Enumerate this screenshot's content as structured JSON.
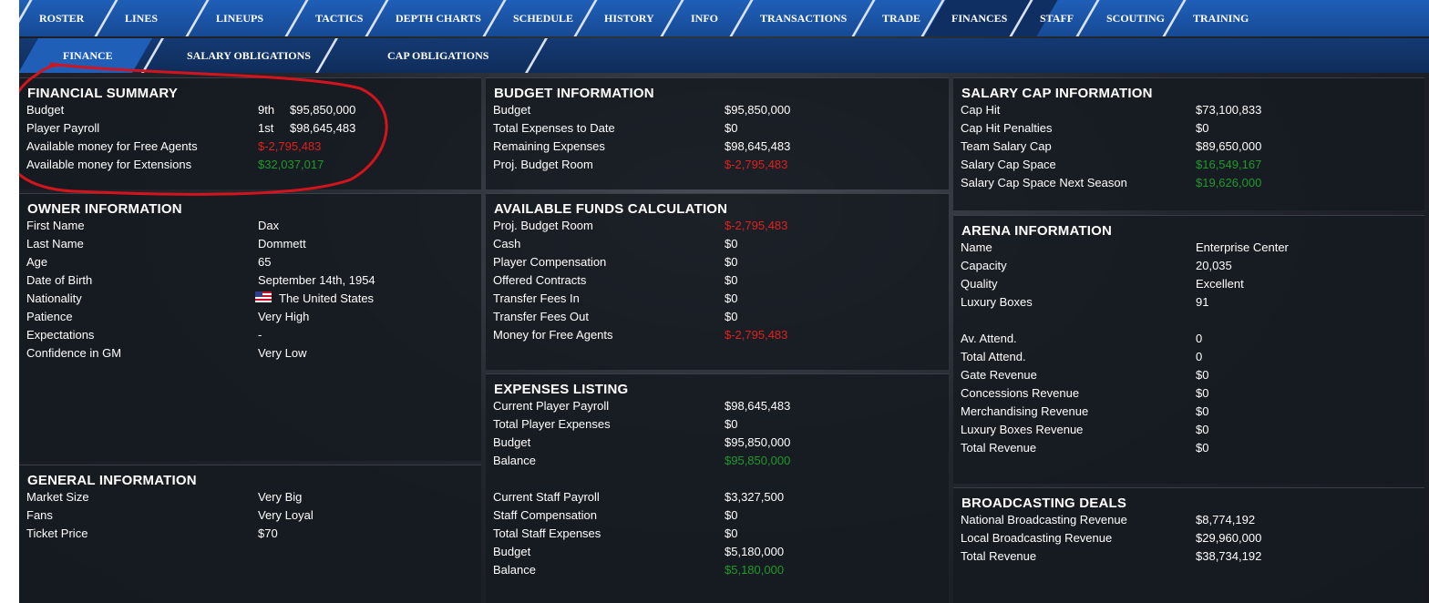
{
  "tabs": [
    "ROSTER",
    "LINES",
    "LINEUPS",
    "TACTICS",
    "DEPTH CHARTS",
    "SCHEDULE",
    "HISTORY",
    "INFO",
    "TRANSACTIONS",
    "TRADE",
    "FINANCES",
    "STAFF",
    "SCOUTING",
    "TRAINING"
  ],
  "active_tab": 10,
  "subtabs": [
    "FINANCE",
    "SALARY OBLIGATIONS",
    "CAP OBLIGATIONS"
  ],
  "active_subtab": 0,
  "panels": [
    {
      "title": "FINANCIAL SUMMARY",
      "groups": [
        [
          {
            "label": "Budget",
            "rank": "9th",
            "value": "$95,850,000"
          },
          {
            "label": "Player Payroll",
            "rank": "1st",
            "value": "$98,645,483"
          },
          {
            "label": "Available money for Free Agents",
            "value": "$-2,795,483",
            "color": "#e0201c"
          },
          {
            "label": "Available money for Extensions",
            "value": "$32,037,017",
            "color": "#1f9a2a"
          }
        ]
      ]
    },
    {
      "title": "OWNER INFORMATION",
      "groups": [
        [
          {
            "label": "First Name",
            "value": "Dax"
          },
          {
            "label": "Last Name",
            "value": "Dommett"
          },
          {
            "label": "Age",
            "value": "65"
          },
          {
            "label": "Date of Birth",
            "value": "September 14th, 1954"
          },
          {
            "label": "Nationality",
            "value": "The United States"
          },
          {
            "label": "Patience",
            "value": "Very High"
          },
          {
            "label": "Expectations",
            "value": "-"
          },
          {
            "label": "Confidence in GM",
            "value": "Very Low"
          }
        ]
      ]
    },
    {
      "title": "GENERAL INFORMATION",
      "groups": [
        [
          {
            "label": "Market Size",
            "value": "Very Big"
          },
          {
            "label": "Fans",
            "value": "Very Loyal"
          },
          {
            "label": "Ticket Price",
            "value": "$70"
          }
        ]
      ]
    },
    {
      "title": "BUDGET INFORMATION",
      "groups": [
        [
          {
            "label": "Budget",
            "value": "$95,850,000"
          },
          {
            "label": "Total Expenses to Date",
            "value": "$0"
          },
          {
            "label": "Remaining Expenses",
            "value": "$98,645,483"
          },
          {
            "label": "Proj. Budget Room",
            "value": "$-2,795,483",
            "color": "#e0201c"
          }
        ]
      ]
    },
    {
      "title": "AVAILABLE FUNDS CALCULATION",
      "groups": [
        [
          {
            "label": "Proj. Budget Room",
            "value": "$-2,795,483",
            "color": "#e0201c"
          },
          {
            "label": "Cash",
            "value": "$0"
          },
          {
            "label": "Player Compensation",
            "value": "$0"
          },
          {
            "label": "Offered Contracts",
            "value": "$0"
          },
          {
            "label": "Transfer Fees In",
            "value": "$0"
          },
          {
            "label": "Transfer Fees Out",
            "value": "$0"
          },
          {
            "label": "Money for Free Agents",
            "value": "$-2,795,483",
            "color": "#e0201c"
          }
        ]
      ]
    },
    {
      "title": "EXPENSES LISTING",
      "groups": [
        [
          {
            "label": "Current Player Payroll",
            "value": "$98,645,483"
          },
          {
            "label": "Total Player Expenses",
            "value": "$0"
          },
          {
            "label": "Budget",
            "value": "$95,850,000"
          },
          {
            "label": "Balance",
            "value": "$95,850,000",
            "color": "#1f9a2a"
          }
        ],
        [
          {
            "label": "Current Staff Payroll",
            "value": "$3,327,500"
          },
          {
            "label": "Staff Compensation",
            "value": "$0"
          },
          {
            "label": "Total Staff Expenses",
            "value": "$0"
          },
          {
            "label": "Budget",
            "value": "$5,180,000"
          },
          {
            "label": "Balance",
            "value": "$5,180,000",
            "color": "#1f9a2a"
          }
        ]
      ]
    },
    {
      "title": "SALARY CAP INFORMATION",
      "groups": [
        [
          {
            "label": "Cap Hit",
            "value": "$73,100,833"
          },
          {
            "label": "Cap Hit Penalties",
            "value": "$0"
          },
          {
            "label": "Team Salary Cap",
            "value": "$89,650,000"
          },
          {
            "label": "Salary Cap Space",
            "value": "$16,549,167",
            "color": "#1f9a2a"
          },
          {
            "label": "Salary Cap Space Next Season",
            "value": "$19,626,000",
            "color": "#1f9a2a"
          }
        ]
      ]
    },
    {
      "title": "ARENA INFORMATION",
      "groups": [
        [
          {
            "label": "Name",
            "value": "Enterprise Center"
          },
          {
            "label": "Capacity",
            "value": "20,035"
          },
          {
            "label": "Quality",
            "value": "Excellent"
          },
          {
            "label": "Luxury Boxes",
            "value": "91"
          }
        ],
        [
          {
            "label": "Av. Attend.",
            "value": "0"
          },
          {
            "label": "Total Attend.",
            "value": "0"
          },
          {
            "label": "Gate Revenue",
            "value": "$0"
          },
          {
            "label": "Concessions Revenue",
            "value": "$0"
          },
          {
            "label": "Merchandising Revenue",
            "value": "$0"
          },
          {
            "label": "Luxury Boxes Revenue",
            "value": "$0"
          },
          {
            "label": "Total Revenue",
            "value": "$0"
          }
        ]
      ]
    },
    {
      "title": "BROADCASTING DEALS",
      "groups": [
        [
          {
            "label": "National Broadcasting Revenue",
            "value": "$8,774,192"
          },
          {
            "label": "Local Broadcasting Revenue",
            "value": "$29,960,000"
          },
          {
            "label": "Total Revenue",
            "value": "$38,734,192"
          }
        ]
      ]
    }
  ]
}
